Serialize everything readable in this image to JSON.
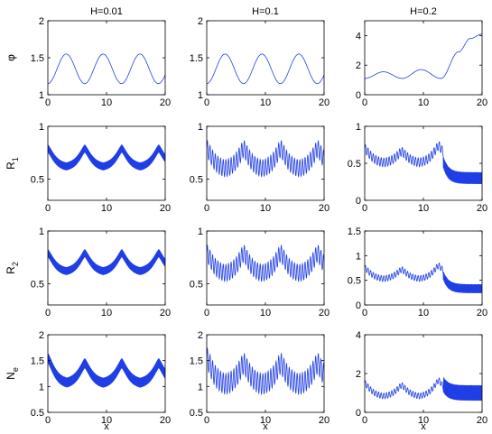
{
  "chart_data": {
    "type": "line",
    "layout": "4x3 grid of subplots",
    "columns": [
      {
        "title": "H=0.01"
      },
      {
        "title": "H=0.1"
      },
      {
        "title": "H=0.2"
      }
    ],
    "rows": [
      {
        "ylabel_main": "φ",
        "ylabel_sub": ""
      },
      {
        "ylabel_main": "R",
        "ylabel_sub": "1"
      },
      {
        "ylabel_main": "R",
        "ylabel_sub": "2"
      },
      {
        "ylabel_main": "N",
        "ylabel_sub": "e"
      }
    ],
    "xlabel": "x",
    "xlim": [
      0,
      20
    ],
    "xticks": [
      0,
      10,
      20
    ],
    "line_color": "#1f3ee6",
    "panels": [
      {
        "row": 0,
        "col": 0,
        "ylim": [
          1,
          2
        ],
        "yticks": [
          "1",
          "1.5",
          "2"
        ],
        "pattern": "phi_periodic",
        "mean": 1.35,
        "amp": 0.2,
        "period": 6.28
      },
      {
        "row": 0,
        "col": 1,
        "ylim": [
          1,
          2
        ],
        "yticks": [
          "1",
          "1.5",
          "2"
        ],
        "pattern": "phi_periodic",
        "mean": 1.35,
        "amp": 0.2,
        "period": 6.28
      },
      {
        "row": 0,
        "col": 2,
        "ylim": [
          0,
          5
        ],
        "yticks": [
          "0",
          "2",
          "4"
        ],
        "pattern": "phi_breakout",
        "points": [
          [
            0,
            1.1
          ],
          [
            3.2,
            1.55
          ],
          [
            6.4,
            1.1
          ],
          [
            9.6,
            1.7
          ],
          [
            13.0,
            1.1
          ],
          [
            16.0,
            2.9
          ],
          [
            18.0,
            3.8
          ],
          [
            20.0,
            4.1
          ]
        ]
      },
      {
        "row": 1,
        "col": 0,
        "ylim": [
          0.3,
          1
        ],
        "yticks": [
          "0.5",
          "1"
        ],
        "pattern": "dense_band",
        "peaks": [
          0.79,
          0.79,
          0.79,
          0.79
        ],
        "trough": 0.61,
        "band": 0.07
      },
      {
        "row": 1,
        "col": 1,
        "ylim": [
          0.3,
          1
        ],
        "yticks": [
          "0.5",
          "1"
        ],
        "pattern": "periodic_oscillation",
        "peaks": [
          0.79,
          0.79,
          0.79,
          0.79
        ],
        "trough": 0.59,
        "osc": 0.08,
        "osc_period": 0.45
      },
      {
        "row": 1,
        "col": 2,
        "ylim": [
          0,
          1
        ],
        "yticks": [
          "0",
          "0.5",
          "1"
        ],
        "pattern": "breakup",
        "peaks": [
          0.7,
          0.66,
          0.74,
          0.86
        ],
        "trough": 0.5,
        "osc": 0.06,
        "osc_period": 0.45,
        "tail_start": 13.4,
        "tail_level": 0.3,
        "tail_band": 0.08
      },
      {
        "row": 2,
        "col": 0,
        "ylim": [
          0.3,
          1
        ],
        "yticks": [
          "0.5",
          "1"
        ],
        "pattern": "dense_band",
        "peaks": [
          0.79,
          0.79,
          0.79,
          0.79
        ],
        "trough": 0.61,
        "band": 0.07
      },
      {
        "row": 2,
        "col": 1,
        "ylim": [
          0.3,
          1
        ],
        "yticks": [
          "0.5",
          "1"
        ],
        "pattern": "periodic_oscillation",
        "peaks": [
          0.79,
          0.79,
          0.79,
          0.79
        ],
        "trough": 0.59,
        "osc": 0.08,
        "osc_period": 0.45
      },
      {
        "row": 2,
        "col": 2,
        "ylim": [
          0,
          1.5
        ],
        "yticks": [
          "0",
          "0.5",
          "1",
          "1.5"
        ],
        "pattern": "breakup",
        "peaks": [
          0.75,
          0.72,
          0.8,
          1.0
        ],
        "trough": 0.52,
        "osc": 0.06,
        "osc_period": 0.45,
        "tail_start": 13.4,
        "tail_level": 0.33,
        "tail_band": 0.09
      },
      {
        "row": 3,
        "col": 0,
        "ylim": [
          0.5,
          2
        ],
        "yticks": [
          "0.5",
          "1",
          "1.5",
          "2"
        ],
        "pattern": "dense_band",
        "peaks": [
          1.55,
          1.45,
          1.45,
          1.45
        ],
        "trough": 1.05,
        "band": 0.18
      },
      {
        "row": 3,
        "col": 1,
        "ylim": [
          0.5,
          2
        ],
        "yticks": [
          "0.5",
          "1",
          "1.5",
          "2"
        ],
        "pattern": "periodic_oscillation",
        "peaks": [
          1.55,
          1.45,
          1.45,
          1.45
        ],
        "trough": 1.02,
        "osc": 0.2,
        "osc_period": 0.45
      },
      {
        "row": 3,
        "col": 2,
        "ylim": [
          0,
          4
        ],
        "yticks": [
          "0",
          "2",
          "4"
        ],
        "pattern": "breakup",
        "peaks": [
          1.5,
          1.4,
          1.65,
          2.4
        ],
        "trough": 0.8,
        "osc": 0.15,
        "osc_period": 0.45,
        "tail_start": 13.4,
        "tail_level": 1.0,
        "tail_band": 0.4
      }
    ]
  }
}
